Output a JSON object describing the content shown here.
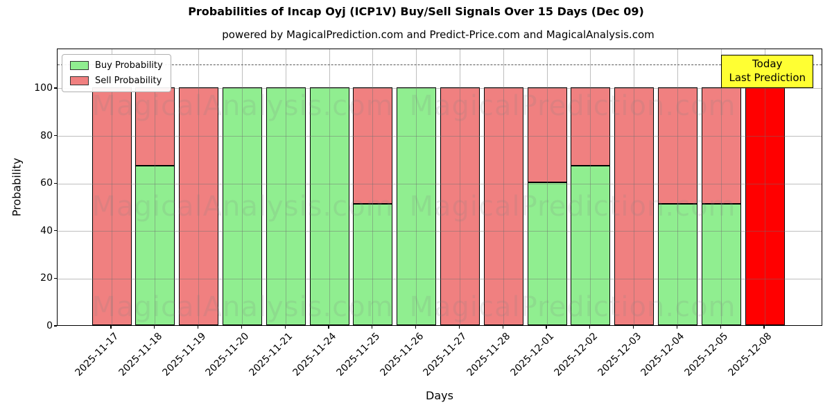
{
  "chart_data": {
    "type": "bar",
    "stacked": true,
    "title": "Probabilities of Incap Oyj (ICP1V) Buy/Sell Signals Over 15 Days (Dec 09)",
    "subtitle": "powered by MagicalPrediction.com and Predict-Price.com and MagicalAnalysis.com",
    "xlabel": "Days",
    "ylabel": "Probability",
    "categories": [
      "2025-11-17",
      "2025-11-18",
      "2025-11-19",
      "2025-11-20",
      "2025-11-21",
      "2025-11-24",
      "2025-11-25",
      "2025-11-26",
      "2025-11-27",
      "2025-11-28",
      "2025-12-01",
      "2025-12-02",
      "2025-12-03",
      "2025-12-04",
      "2025-12-05",
      "2025-12-08"
    ],
    "series": [
      {
        "name": "Buy Probability",
        "color": "#90ee90",
        "values": [
          0,
          67,
          0,
          100,
          100,
          100,
          51,
          100,
          0,
          0,
          60,
          67,
          0,
          51,
          51,
          0
        ]
      },
      {
        "name": "Sell Probability",
        "color": "#f08080",
        "values": [
          100,
          33,
          100,
          0,
          0,
          0,
          49,
          0,
          100,
          100,
          40,
          33,
          100,
          49,
          49,
          100
        ]
      }
    ],
    "today_index": 15,
    "today_color": "#ff0000",
    "ylim": [
      0,
      116.6
    ],
    "yticks": [
      0,
      20,
      40,
      60,
      80,
      100
    ],
    "grid": true,
    "dashed_line_y": 110,
    "legend_position": "upper left",
    "legend": [
      {
        "label": "Buy Probability",
        "color": "#90ee90"
      },
      {
        "label": "Sell Probability",
        "color": "#f08080"
      }
    ],
    "annotation_box": {
      "line1": "Today",
      "line2": "Last Prediction",
      "bg": "#ffff33"
    },
    "watermarks": [
      "MagicalAnalysis.com",
      "MagicalPrediction.com"
    ],
    "colors": {
      "grid": "#b0b0b0",
      "dashed_line": "#555555",
      "axis": "#000000",
      "bar_edge": "#000000",
      "watermark": "rgba(128,128,128,0.17)",
      "background": "#ffffff"
    }
  }
}
